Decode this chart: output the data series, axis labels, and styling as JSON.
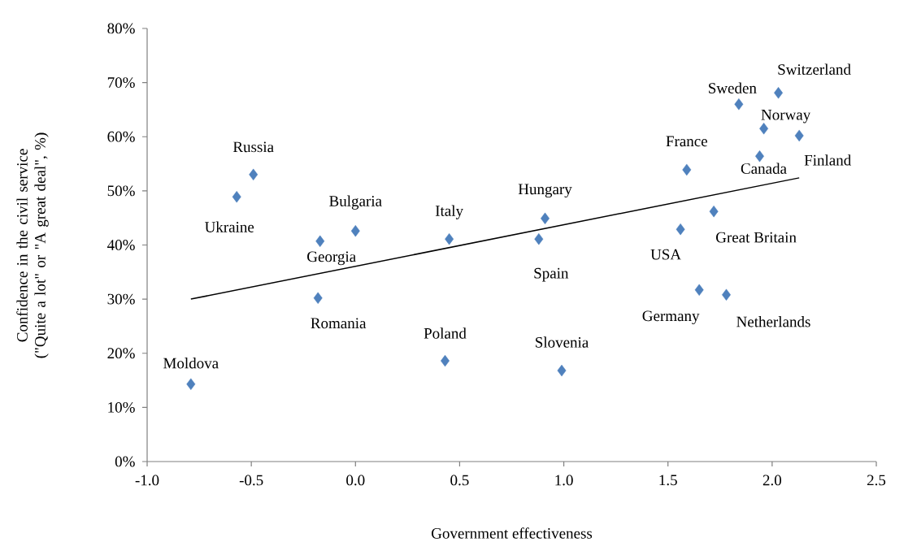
{
  "chart_data": {
    "type": "scatter",
    "xlabel": "Government effectiveness",
    "ylabel": "Confidence in the civil service  (\"Quite a lot\" or \"A great deal\", %)",
    "xlim": [
      -1.0,
      2.5
    ],
    "xticks": [
      {
        "value": -1.0,
        "label": "-1.0"
      },
      {
        "value": -0.5,
        "label": "-0.5"
      },
      {
        "value": 0,
        "label": "0.0"
      },
      {
        "value": 0.5,
        "label": "0.5"
      },
      {
        "value": 1.0,
        "label": "1.0"
      },
      {
        "value": 1.5,
        "label": "1.5"
      },
      {
        "value": 2.0,
        "label": "2.0"
      },
      {
        "value": 2.5,
        "label": "2.5"
      }
    ],
    "ylim": [
      0,
      80
    ],
    "yticks": [
      {
        "value": 0,
        "label": "0%"
      },
      {
        "value": 10,
        "label": "10%"
      },
      {
        "value": 20,
        "label": "20%"
      },
      {
        "value": 30,
        "label": "30%"
      },
      {
        "value": 40,
        "label": "40%"
      },
      {
        "value": 50,
        "label": "50%"
      },
      {
        "value": 60,
        "label": "60%"
      },
      {
        "value": 70,
        "label": "70%"
      },
      {
        "value": 80,
        "label": "80%"
      }
    ],
    "grid": false,
    "series": [
      {
        "color": "#4f81bd",
        "marker": "diamond",
        "x": [
          -0.79,
          -0.57,
          -0.49,
          -0.17,
          -0.18,
          0.0,
          0.45,
          0.43,
          0.91,
          0.88,
          0.99,
          1.56,
          1.59,
          1.72,
          1.65,
          1.78,
          1.94,
          1.84,
          2.03,
          1.96,
          2.13
        ],
        "values": [
          14.3,
          48.9,
          53.0,
          40.7,
          30.2,
          42.6,
          41.1,
          18.6,
          44.9,
          41.1,
          16.8,
          42.9,
          53.9,
          46.2,
          31.7,
          30.8,
          56.4,
          66.0,
          68.1,
          61.5,
          60.2
        ]
      },
      {
        "type": "line",
        "color": "#000000",
        "marker": "none",
        "line_style": "solid",
        "x": [
          -0.79,
          2.13
        ],
        "values": [
          30.0,
          52.4
        ]
      }
    ],
    "annotations": [
      {
        "text": "Moldova",
        "x": -0.79,
        "y": 14.3
      },
      {
        "text": "Ukraine",
        "x": -0.57,
        "y": 48.9
      },
      {
        "text": "Russia",
        "x": -0.49,
        "y": 53.0
      },
      {
        "text": "Georgia",
        "x": -0.17,
        "y": 40.7
      },
      {
        "text": "Romania",
        "x": -0.18,
        "y": 30.2
      },
      {
        "text": "Bulgaria",
        "x": 0.0,
        "y": 42.6
      },
      {
        "text": "Italy",
        "x": 0.45,
        "y": 41.1
      },
      {
        "text": "Poland",
        "x": 0.43,
        "y": 18.6
      },
      {
        "text": "Hungary",
        "x": 0.91,
        "y": 44.9
      },
      {
        "text": "Spain",
        "x": 0.88,
        "y": 41.1
      },
      {
        "text": "Slovenia",
        "x": 0.99,
        "y": 16.8
      },
      {
        "text": "USA",
        "x": 1.56,
        "y": 42.9
      },
      {
        "text": "France",
        "x": 1.59,
        "y": 53.9
      },
      {
        "text": "Great Britain",
        "x": 1.72,
        "y": 46.2
      },
      {
        "text": "Germany",
        "x": 1.65,
        "y": 31.7
      },
      {
        "text": "Netherlands",
        "x": 1.78,
        "y": 30.8
      },
      {
        "text": "Canada",
        "x": 1.94,
        "y": 56.4
      },
      {
        "text": "Sweden",
        "x": 1.84,
        "y": 66.0
      },
      {
        "text": "Switzerland",
        "x": 2.03,
        "y": 68.1
      },
      {
        "text": "Norway",
        "x": 1.96,
        "y": 61.5
      },
      {
        "text": "Finland",
        "x": 2.13,
        "y": 60.2
      }
    ]
  }
}
